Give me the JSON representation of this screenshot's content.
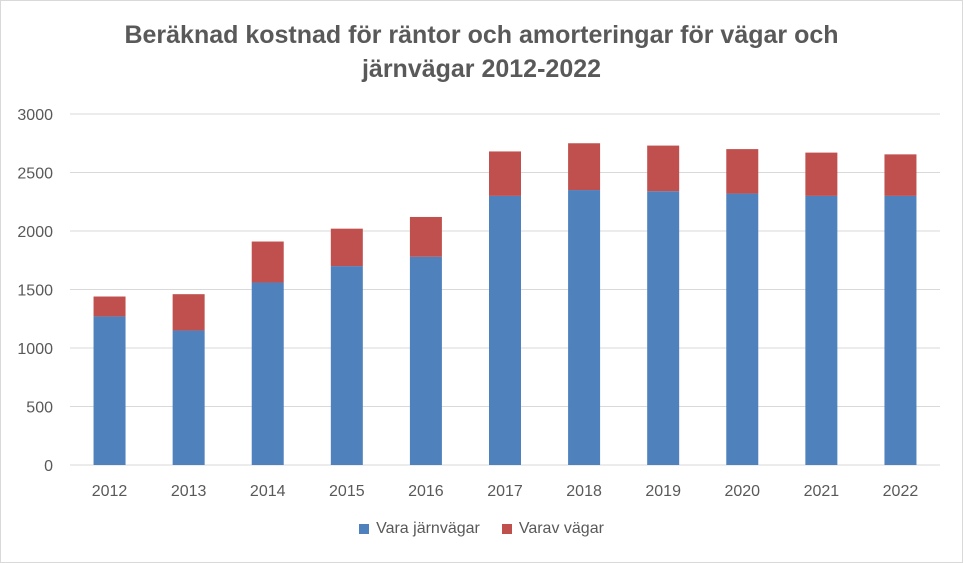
{
  "chart_data": {
    "type": "bar",
    "stacked": true,
    "title_lines": [
      "Beräknad kostnad för räntor och amorteringar för vägar och",
      "järnvägar 2012-2022"
    ],
    "categories": [
      "2012",
      "2013",
      "2014",
      "2015",
      "2016",
      "2017",
      "2018",
      "2019",
      "2020",
      "2021",
      "2022"
    ],
    "series": [
      {
        "name": "Vara järnvägar",
        "color": "#4f81bd",
        "values": [
          1270,
          1150,
          1560,
          1700,
          1780,
          2300,
          2350,
          2340,
          2320,
          2300,
          2300
        ]
      },
      {
        "name": "Varav vägar",
        "color": "#c0504d",
        "values": [
          170,
          310,
          350,
          320,
          340,
          380,
          400,
          390,
          380,
          370,
          355
        ]
      }
    ],
    "ylim": [
      0,
      3000
    ],
    "yticks": [
      0,
      500,
      1000,
      1500,
      2000,
      2500,
      3000
    ],
    "grid": true,
    "legend_position": "bottom"
  }
}
